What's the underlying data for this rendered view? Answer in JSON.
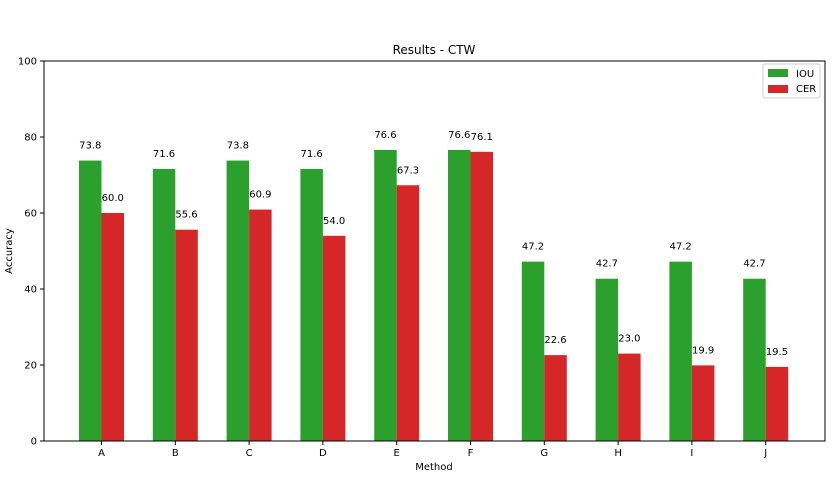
{
  "chart_data": {
    "type": "bar",
    "title": "Results - CTW",
    "xlabel": "Method",
    "ylabel": "Accuracy",
    "ylim": [
      0,
      100
    ],
    "yticks": [
      0,
      20,
      40,
      60,
      80,
      100
    ],
    "categories": [
      "A",
      "B",
      "C",
      "D",
      "E",
      "F",
      "G",
      "H",
      "I",
      "J"
    ],
    "series": [
      {
        "name": "IOU",
        "color": "#2ca02c",
        "values": [
          73.8,
          71.6,
          73.8,
          71.6,
          76.6,
          76.6,
          47.2,
          42.7,
          47.2,
          42.7
        ],
        "labels": [
          "73.8",
          "71.6",
          "73.8",
          "71.6",
          "76.6",
          "76.6",
          "47.2",
          "42.7",
          "47.2",
          "42.7"
        ]
      },
      {
        "name": "CER",
        "color": "#d62728",
        "values": [
          60.0,
          55.6,
          60.9,
          54.0,
          67.3,
          76.1,
          22.6,
          23.0,
          19.9,
          19.5
        ],
        "labels": [
          "60.0",
          "55.6",
          "60.9",
          "54.0",
          "67.3",
          "76.1",
          "22.6",
          "23.0",
          "19.9",
          "19.5"
        ]
      }
    ],
    "legend_position": "top-right",
    "grid": false
  }
}
